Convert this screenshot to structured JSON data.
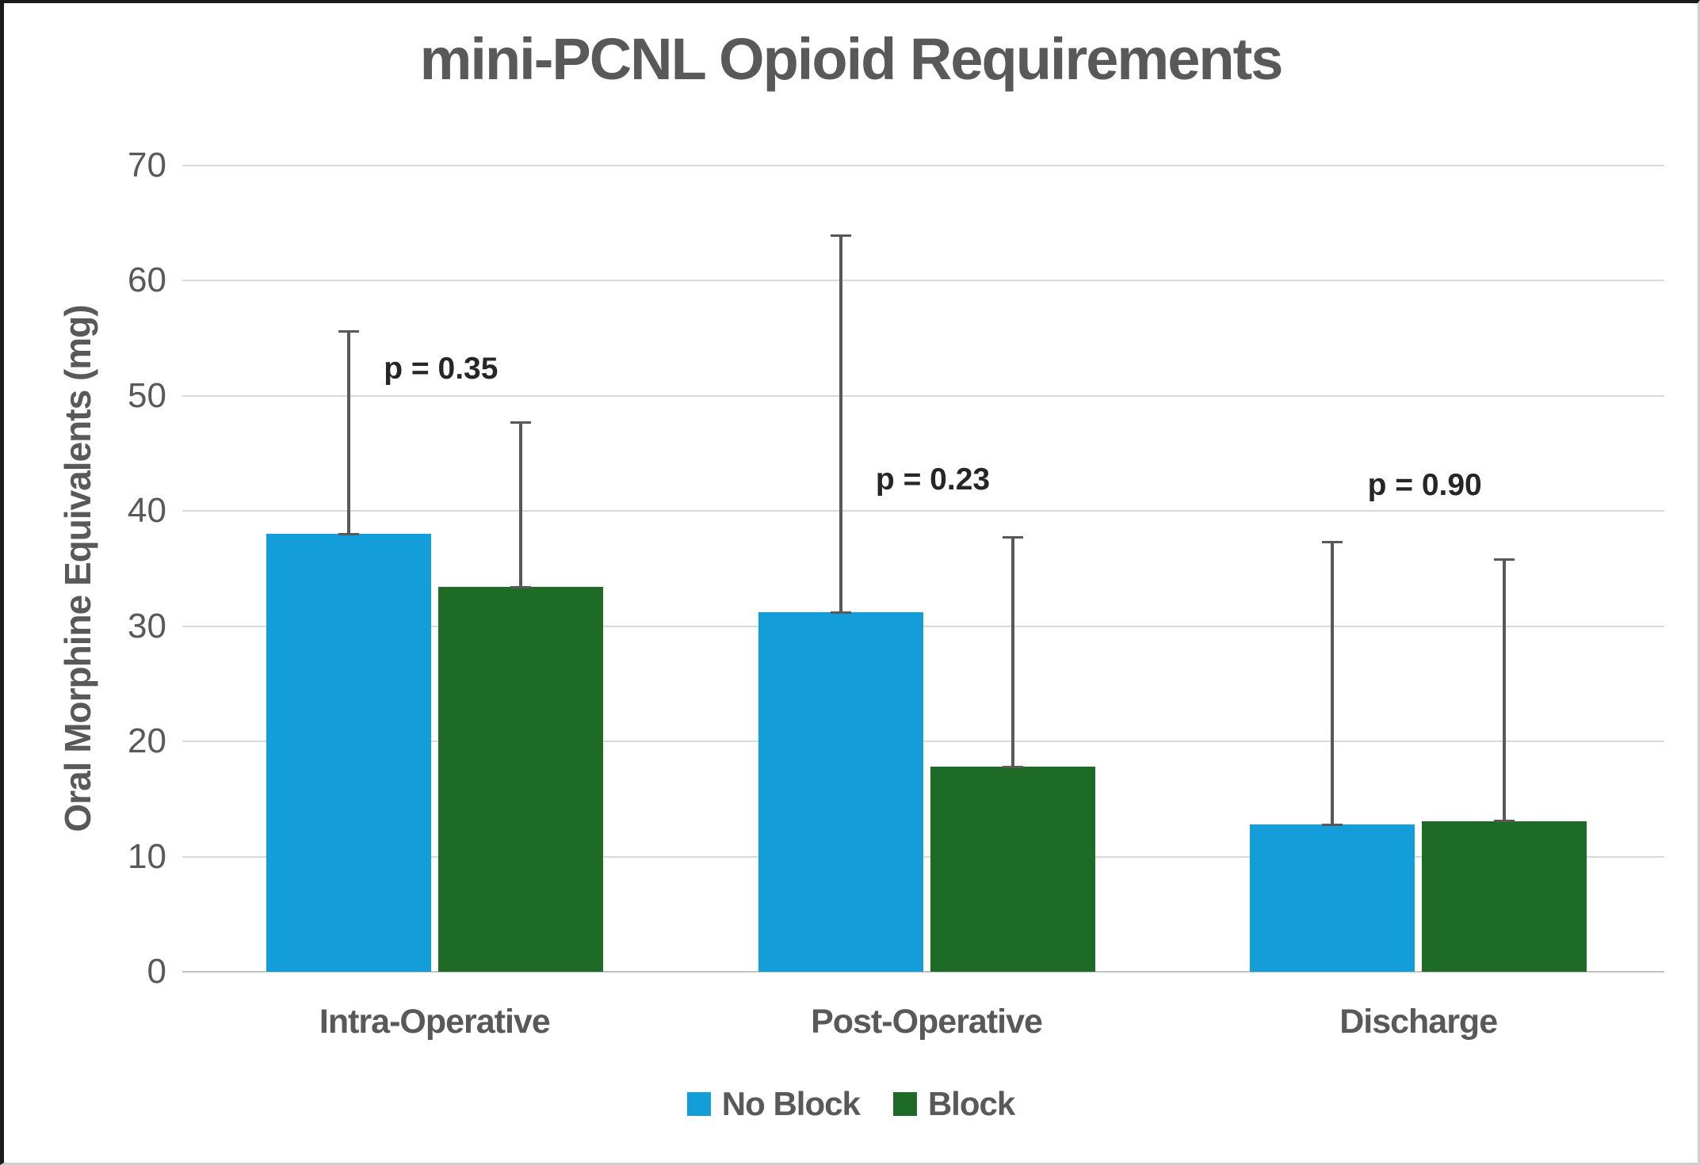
{
  "chart_data": {
    "type": "bar",
    "title": "mini-PCNL Opioid Requirements",
    "ylabel": "Oral Morphine Equivalents (mg)",
    "xlabel": "",
    "ylim": [
      0,
      70
    ],
    "yticks": [
      0,
      10,
      20,
      30,
      40,
      50,
      60,
      70
    ],
    "grid": true,
    "legend_position": "bottom",
    "categories": [
      "Intra-Operative",
      "Post-Operative",
      "Discharge"
    ],
    "series": [
      {
        "name": "No Block",
        "color": "#149ED9",
        "values": [
          38.0,
          31.2,
          12.8
        ],
        "error_plus": [
          17.7,
          32.8,
          24.6
        ]
      },
      {
        "name": "Block",
        "color": "#1E6B28",
        "values": [
          33.4,
          17.8,
          13.1
        ],
        "error_plus": [
          14.4,
          20.0,
          22.8
        ]
      }
    ],
    "annotations": [
      {
        "label": "p = 0.35",
        "category_index": 0,
        "y": 52.3
      },
      {
        "label": "p = 0.23",
        "category_index": 1,
        "y": 42.7
      },
      {
        "label": "p = 0.90",
        "category_index": 2,
        "y": 42.2
      }
    ],
    "colors": {
      "grid": "#D9D9D9",
      "baseline": "#C2C2C2",
      "error_bar": "#595959",
      "axis_text": "#595959",
      "title_text": "#595959",
      "annotation_text": "#262626"
    }
  }
}
